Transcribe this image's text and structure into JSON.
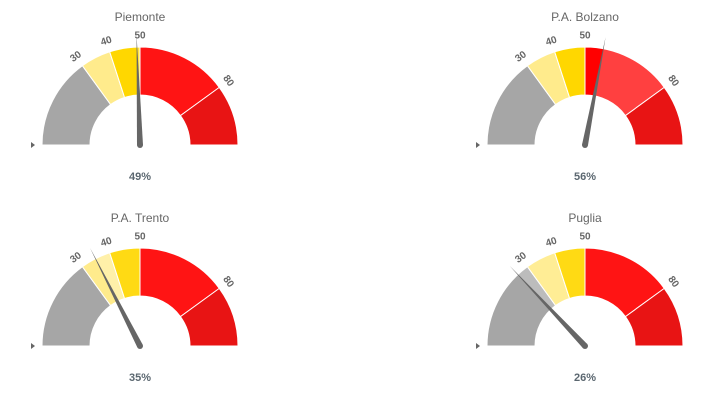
{
  "chart_data": [
    {
      "type": "gauge",
      "title": "Piemonte",
      "value": 49,
      "value_label": "49%",
      "ylim": [
        0,
        100
      ],
      "yticks": [
        30,
        40,
        50,
        80
      ],
      "bands": [
        {
          "from": 0,
          "to": 30,
          "color": "#a6a6a6"
        },
        {
          "from": 30,
          "to": 40,
          "color": "#ffeb8c"
        },
        {
          "from": 40,
          "to": 50,
          "color": "#ffd700"
        },
        {
          "from": 50,
          "to": 80,
          "color": "#ff0000"
        },
        {
          "from": 80,
          "to": 100,
          "color": "#e60000"
        }
      ]
    },
    {
      "type": "gauge",
      "title": "P.A. Bolzano",
      "value": 56,
      "value_label": "56%",
      "ylim": [
        0,
        100
      ],
      "yticks": [
        30,
        40,
        50,
        80
      ],
      "bands": [
        {
          "from": 0,
          "to": 30,
          "color": "#a6a6a6"
        },
        {
          "from": 30,
          "to": 40,
          "color": "#ffeb8c"
        },
        {
          "from": 40,
          "to": 50,
          "color": "#ffd700"
        },
        {
          "from": 50,
          "to": 80,
          "color": "#ff0000"
        },
        {
          "from": 80,
          "to": 100,
          "color": "#e60000"
        }
      ]
    },
    {
      "type": "gauge",
      "title": "P.A. Trento",
      "value": 35,
      "value_label": "35%",
      "ylim": [
        0,
        100
      ],
      "yticks": [
        30,
        40,
        50,
        80
      ],
      "bands": [
        {
          "from": 0,
          "to": 30,
          "color": "#a6a6a6"
        },
        {
          "from": 30,
          "to": 40,
          "color": "#ffeb8c"
        },
        {
          "from": 40,
          "to": 50,
          "color": "#ffd700"
        },
        {
          "from": 50,
          "to": 80,
          "color": "#ff0000"
        },
        {
          "from": 80,
          "to": 100,
          "color": "#e60000"
        }
      ]
    },
    {
      "type": "gauge",
      "title": "Puglia",
      "value": 26,
      "value_label": "26%",
      "ylim": [
        0,
        100
      ],
      "yticks": [
        30,
        40,
        50,
        80
      ],
      "bands": [
        {
          "from": 0,
          "to": 30,
          "color": "#a6a6a6"
        },
        {
          "from": 30,
          "to": 40,
          "color": "#ffeb8c"
        },
        {
          "from": 40,
          "to": 50,
          "color": "#ffd700"
        },
        {
          "from": 50,
          "to": 80,
          "color": "#ff0000"
        },
        {
          "from": 80,
          "to": 100,
          "color": "#e60000"
        }
      ]
    }
  ]
}
